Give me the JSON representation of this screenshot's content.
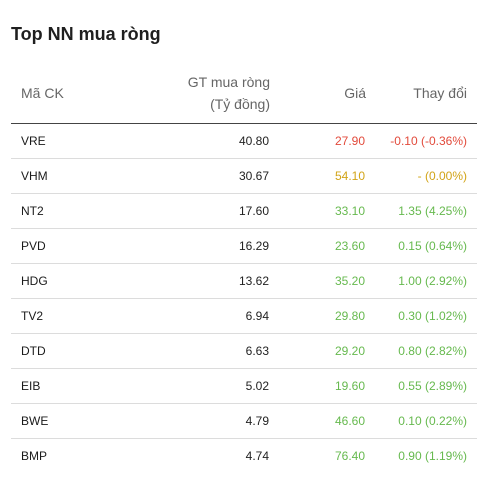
{
  "title": "Top NN mua ròng",
  "columns": {
    "code": "Mã CK",
    "value_line1": "GT mua ròng",
    "value_line2": "(Tỷ đồng)",
    "price": "Giá",
    "change": "Thay đổi"
  },
  "colors": {
    "up": "#66b94e",
    "down": "#e24a3b",
    "flat": "#d2a417"
  },
  "rows": [
    {
      "code": "VRE",
      "value": "40.80",
      "price": "27.90",
      "change": "-0.10 (-0.36%)",
      "trend": "down"
    },
    {
      "code": "VHM",
      "value": "30.67",
      "price": "54.10",
      "change": "- (0.00%)",
      "trend": "flat"
    },
    {
      "code": "NT2",
      "value": "17.60",
      "price": "33.10",
      "change": "1.35 (4.25%)",
      "trend": "up"
    },
    {
      "code": "PVD",
      "value": "16.29",
      "price": "23.60",
      "change": "0.15 (0.64%)",
      "trend": "up"
    },
    {
      "code": "HDG",
      "value": "13.62",
      "price": "35.20",
      "change": "1.00 (2.92%)",
      "trend": "up"
    },
    {
      "code": "TV2",
      "value": "6.94",
      "price": "29.80",
      "change": "0.30 (1.02%)",
      "trend": "up"
    },
    {
      "code": "DTD",
      "value": "6.63",
      "price": "29.20",
      "change": "0.80 (2.82%)",
      "trend": "up"
    },
    {
      "code": "EIB",
      "value": "5.02",
      "price": "19.60",
      "change": "0.55 (2.89%)",
      "trend": "up"
    },
    {
      "code": "BWE",
      "value": "4.79",
      "price": "46.60",
      "change": "0.10 (0.22%)",
      "trend": "up"
    },
    {
      "code": "BMP",
      "value": "4.74",
      "price": "76.40",
      "change": "0.90 (1.19%)",
      "trend": "up"
    }
  ]
}
